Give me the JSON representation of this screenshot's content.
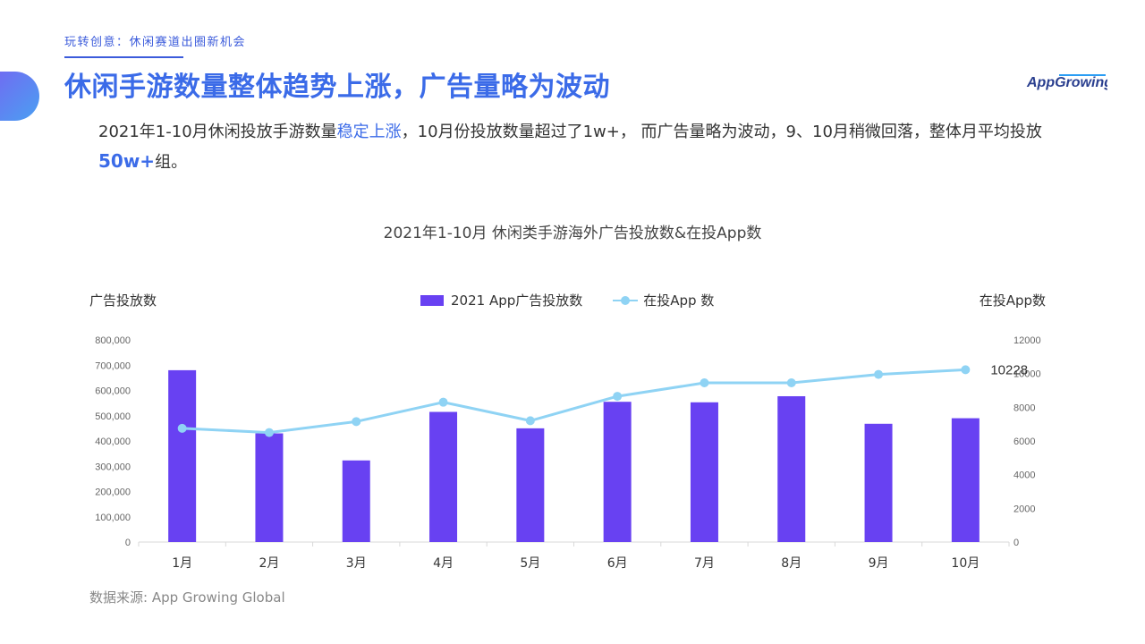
{
  "header": {
    "section_label": "玩转创意：休闲赛道出圈新机会",
    "title": "休闲手游数量整体趋势上涨，广告量略为波动",
    "logo_text": "AppGrowing"
  },
  "summary": {
    "part1": "2021年1-10月休闲投放手游数量",
    "highlight1": "稳定上涨",
    "part2": "，10月份投放数量超过了1w+， 而广告量略为波动，9、10月稍微回落，整体月平均投放",
    "highlight2": "50w+",
    "part3": "组。"
  },
  "colors": {
    "accent": "#3b6be8",
    "bar": "#6841f2",
    "line": "#8fd3f4"
  },
  "chart_data": {
    "type": "bar",
    "title": "2021年1-10月 休闲类手游海外广告投放数&在投App数",
    "ylabel": "广告投放数",
    "y2label": "在投App数",
    "categories": [
      "1月",
      "2月",
      "3月",
      "4月",
      "5月",
      "6月",
      "7月",
      "8月",
      "9月",
      "10月"
    ],
    "ylim": [
      0,
      800000
    ],
    "y2lim": [
      0,
      12000
    ],
    "yticks": [
      "0",
      "100,000",
      "200,000",
      "300,000",
      "400,000",
      "500,000",
      "600,000",
      "700,000",
      "800,000"
    ],
    "y2ticks": [
      "0",
      "2000",
      "4000",
      "6000",
      "8000",
      "10000",
      "12000"
    ],
    "series": [
      {
        "name": "2021 App广告投放数",
        "type": "bar",
        "axis": "left",
        "values": [
          680000,
          430000,
          323000,
          515000,
          450000,
          555000,
          553000,
          577000,
          468000,
          490000
        ]
      },
      {
        "name": "在投App 数",
        "type": "line",
        "axis": "right",
        "values": [
          6750,
          6500,
          7150,
          8300,
          7200,
          8650,
          9450,
          9450,
          9950,
          10228
        ]
      }
    ],
    "annotation": "10228",
    "grid": false,
    "legend": "top-center"
  },
  "footer": {
    "source": "数据来源: App Growing Global"
  }
}
